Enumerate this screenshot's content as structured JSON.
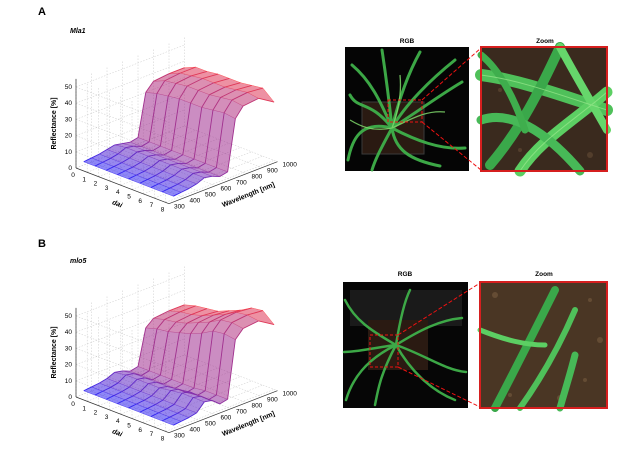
{
  "panels": [
    {
      "letter": "A",
      "genotype": "Mla1",
      "images": {
        "rgb_label": "RGB",
        "zoom_label": "Zoom"
      },
      "chart_data": {
        "type": "area",
        "z_label": "Reflectance [%]",
        "x_label": "dai",
        "y_label": "Wavelength [nm]",
        "z_ticks": [
          "0",
          "10",
          "20",
          "30",
          "40",
          "50"
        ],
        "x_ticks": [
          "0",
          "1",
          "2",
          "3",
          "4",
          "5",
          "6",
          "7",
          "8"
        ],
        "y_ticks": [
          "300",
          "400",
          "500",
          "600",
          "700",
          "800",
          "900",
          "1000"
        ],
        "wavelengths": [
          350,
          400,
          450,
          500,
          550,
          600,
          650,
          700,
          750,
          800,
          900,
          1000
        ],
        "series": [
          {
            "dai": 0,
            "values": [
              2,
              2.5,
              3,
              4,
              5,
              4,
              3,
              4,
              30,
              35,
              36,
              36
            ]
          },
          {
            "dai": 1,
            "values": [
              2,
              2.5,
              3,
              4,
              6,
              5,
              3,
              4,
              32,
              38,
              39,
              39
            ]
          },
          {
            "dai": 2,
            "values": [
              2,
              2.5,
              3,
              4,
              6,
              5,
              3,
              4,
              33,
              39,
              40,
              39
            ]
          },
          {
            "dai": 3,
            "values": [
              2,
              2.5,
              3,
              4,
              6,
              5,
              3,
              4,
              34,
              40,
              41,
              40
            ]
          },
          {
            "dai": 4,
            "values": [
              2,
              2.5,
              3,
              4,
              6,
              5,
              3,
              4,
              34,
              40,
              41,
              40
            ]
          },
          {
            "dai": 5,
            "values": [
              2,
              2.5,
              3,
              4,
              6,
              5,
              3,
              4,
              34,
              40,
              41,
              40
            ]
          },
          {
            "dai": 6,
            "values": [
              2,
              2.5,
              3,
              4,
              6,
              5,
              3,
              4,
              35,
              41,
              42,
              41
            ]
          },
          {
            "dai": 7,
            "values": [
              2,
              2.5,
              3,
              4,
              6,
              5,
              3,
              4,
              36,
              42,
              43,
              42
            ]
          },
          {
            "dai": 8,
            "values": [
              2,
              2.5,
              3,
              4,
              6,
              5,
              3,
              4,
              35,
              41,
              42,
              36
            ]
          }
        ]
      }
    },
    {
      "letter": "B",
      "genotype": "mlo5",
      "images": {
        "rgb_label": "RGB",
        "zoom_label": "Zoom"
      },
      "chart_data": {
        "type": "area",
        "z_label": "Reflectance [%]",
        "x_label": "dai",
        "y_label": "Wavelength [nm]",
        "z_ticks": [
          "0",
          "10",
          "20",
          "30",
          "40",
          "50"
        ],
        "x_ticks": [
          "0",
          "1",
          "2",
          "3",
          "4",
          "5",
          "6",
          "7",
          "8"
        ],
        "y_ticks": [
          "300",
          "400",
          "500",
          "600",
          "700",
          "800",
          "900",
          "1000"
        ],
        "wavelengths": [
          350,
          400,
          450,
          500,
          550,
          600,
          650,
          700,
          750,
          800,
          900,
          1000
        ],
        "series": [
          {
            "dai": 0,
            "values": [
              2,
              2.5,
              3,
              4,
              6,
              5,
              3,
              4,
              26,
              30,
              31,
              31
            ]
          },
          {
            "dai": 1,
            "values": [
              2,
              2.5,
              3,
              4,
              7,
              6,
              3,
              4,
              28,
              32,
              33,
              33
            ]
          },
          {
            "dai": 2,
            "values": [
              2,
              2.5,
              3,
              4,
              7,
              6,
              3,
              4,
              29,
              33,
              34,
              34
            ]
          },
          {
            "dai": 3,
            "values": [
              2,
              2.5,
              3,
              4,
              7,
              6,
              3,
              4,
              31,
              35,
              36,
              35
            ]
          },
          {
            "dai": 4,
            "values": [
              2,
              2.5,
              3,
              4,
              7,
              6,
              3,
              4,
              33,
              38,
              39,
              38
            ]
          },
          {
            "dai": 5,
            "values": [
              2,
              2.5,
              3,
              4,
              8,
              7,
              3,
              4,
              36,
              41,
              42,
              41
            ]
          },
          {
            "dai": 6,
            "values": [
              2,
              2.5,
              3,
              4,
              9,
              8,
              4,
              5,
              40,
              45,
              46,
              45
            ]
          },
          {
            "dai": 7,
            "values": [
              2,
              2.5,
              3,
              4,
              9,
              8,
              4,
              5,
              41,
              46,
              47,
              46
            ]
          },
          {
            "dai": 8,
            "values": [
              2,
              2.5,
              3,
              4,
              9,
              8,
              4,
              5,
              40,
              45,
              46,
              40
            ]
          }
        ]
      }
    }
  ]
}
